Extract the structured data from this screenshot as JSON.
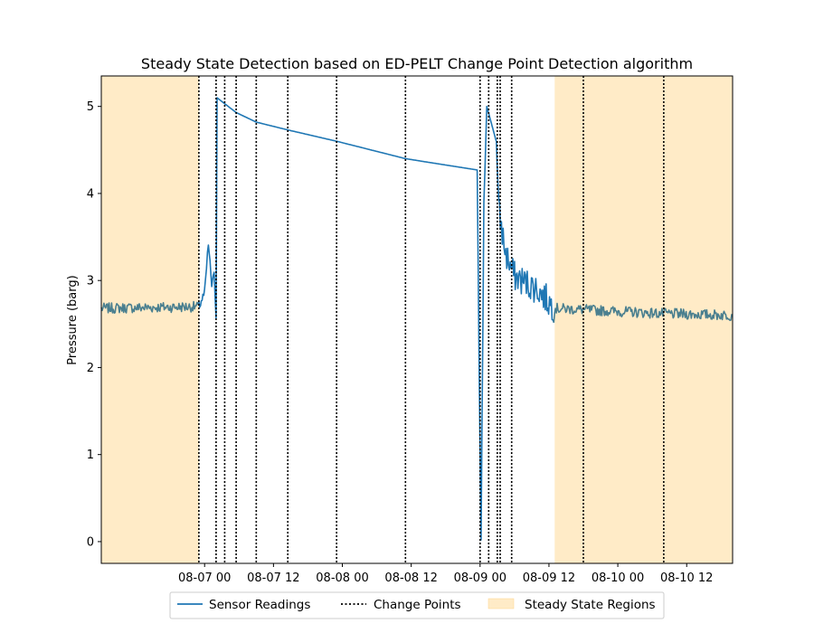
{
  "chart_data": {
    "type": "line",
    "title": "Steady State Detection based on ED-PELT Change Point Detection algorithm",
    "xlabel": "",
    "ylabel": "Pressure (barg)",
    "x_range": [
      "2020-08-06 06:00",
      "2020-08-10 20:00"
    ],
    "ylim": [
      -0.25,
      5.35
    ],
    "x_ticks": [
      {
        "at": "2020-08-07 00:00",
        "label": "08-07 00"
      },
      {
        "at": "2020-08-07 12:00",
        "label": "08-07 12"
      },
      {
        "at": "2020-08-08 00:00",
        "label": "08-08 00"
      },
      {
        "at": "2020-08-08 12:00",
        "label": "08-08 12"
      },
      {
        "at": "2020-08-09 00:00",
        "label": "08-09 00"
      },
      {
        "at": "2020-08-09 12:00",
        "label": "08-09 12"
      },
      {
        "at": "2020-08-10 00:00",
        "label": "08-10 00"
      },
      {
        "at": "2020-08-10 12:00",
        "label": "08-10 12"
      }
    ],
    "y_ticks": [
      0,
      1,
      2,
      3,
      4,
      5
    ],
    "grid": false,
    "legend_position": "bottom-center, below axes",
    "legend": {
      "readings": "Sensor Readings",
      "change_points": "Change Points",
      "steady": "Steady State Regions"
    },
    "colors": {
      "readings": "#1f77b4",
      "steady_fill": "#ffebc7",
      "steady_overlap_line": "#4a7f8f",
      "change_points": "#000000"
    },
    "steady_state_regions": [
      [
        "2020-08-06 06:00",
        "2020-08-06 23:00"
      ],
      [
        "2020-08-09 13:00",
        "2020-08-10 20:00"
      ]
    ],
    "change_points": [
      "2020-08-06 23:00",
      "2020-08-07 02:00",
      "2020-08-07 03:30",
      "2020-08-07 05:30",
      "2020-08-07 09:00",
      "2020-08-07 14:30",
      "2020-08-07 23:00",
      "2020-08-08 11:00",
      "2020-08-09 03:00",
      "2020-08-09 00:00",
      "2020-08-09 01:30",
      "2020-08-09 03:30",
      "2020-08-09 05:30",
      "2020-08-09 18:00",
      "2020-08-10 08:00"
    ],
    "series": [
      {
        "name": "Sensor Readings",
        "points": [
          [
            "2020-08-06 06:00",
            2.68
          ],
          [
            "2020-08-06 23:00",
            2.7
          ],
          [
            "2020-08-07 00:00",
            2.85
          ],
          [
            "2020-08-07 00:40",
            3.42
          ],
          [
            "2020-08-07 01:15",
            2.95
          ],
          [
            "2020-08-07 01:40",
            3.05
          ],
          [
            "2020-08-07 02:00",
            2.6
          ],
          [
            "2020-08-07 02:10",
            5.1
          ],
          [
            "2020-08-07 05:30",
            4.93
          ],
          [
            "2020-08-07 09:00",
            4.82
          ],
          [
            "2020-08-07 14:30",
            4.73
          ],
          [
            "2020-08-07 23:00",
            4.6
          ],
          [
            "2020-08-08 11:00",
            4.4
          ],
          [
            "2020-08-08 23:30",
            4.27
          ],
          [
            "2020-08-09 00:10",
            0.0
          ],
          [
            "2020-08-09 00:40",
            3.9
          ],
          [
            "2020-08-09 01:10",
            5.0
          ],
          [
            "2020-08-09 02:50",
            4.6
          ],
          [
            "2020-08-09 03:15",
            3.8
          ],
          [
            "2020-08-09 04:30",
            3.3
          ],
          [
            "2020-08-09 06:00",
            3.05
          ],
          [
            "2020-08-09 10:00",
            2.9
          ],
          [
            "2020-08-09 13:00",
            2.68
          ],
          [
            "2020-08-10 08:00",
            2.62
          ],
          [
            "2020-08-10 20:00",
            2.6
          ]
        ]
      }
    ]
  }
}
